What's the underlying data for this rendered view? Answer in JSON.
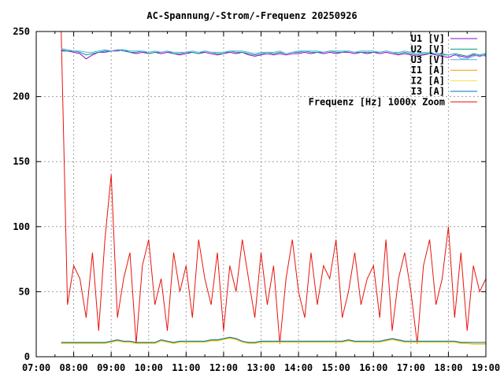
{
  "chart_data": {
    "type": "line",
    "title": "AC-Spannung/-Strom/-Frequenz 20250926",
    "xlabel": "",
    "ylabel": "",
    "xlim_hours": [
      7,
      19
    ],
    "ylim": [
      0,
      250
    ],
    "grid": true,
    "legend_position": "top-right",
    "x_tick_labels": [
      "07:00",
      "08:00",
      "09:00",
      "10:00",
      "11:00",
      "12:00",
      "13:00",
      "14:00",
      "15:00",
      "16:00",
      "17:00",
      "18:00",
      "19:00"
    ],
    "y_ticks": [
      0,
      50,
      100,
      150,
      200,
      250
    ],
    "y_tick_labels": [
      "0",
      "50",
      "100",
      "150",
      "200",
      "250"
    ],
    "x_start_hours": 7.6667,
    "x_step_minutes": 10,
    "series": [
      {
        "name": "U1 [V]",
        "color": "#9400d3",
        "values": [
          235,
          235,
          234,
          233,
          229,
          232,
          234,
          234,
          235,
          235,
          236,
          234,
          233,
          234,
          233,
          234,
          233,
          234,
          233,
          232,
          233,
          234,
          233,
          234,
          233,
          232,
          233,
          234,
          233,
          234,
          232,
          231,
          232,
          233,
          232,
          233,
          232,
          233,
          233,
          234,
          233,
          234,
          233,
          234,
          233,
          234,
          234,
          233,
          234,
          233,
          234,
          233,
          234,
          233,
          232,
          233,
          232,
          231,
          232,
          233,
          232,
          231,
          230,
          232,
          231,
          230,
          232,
          231,
          232
        ]
      },
      {
        "name": "U2 [V]",
        "color": "#009e73",
        "values": [
          236,
          235,
          235,
          234,
          232,
          233,
          234,
          235,
          235,
          236,
          235,
          234,
          234,
          235,
          233,
          234,
          234,
          235,
          233,
          233,
          234,
          234,
          233,
          235,
          234,
          233,
          233,
          235,
          234,
          234,
          233,
          232,
          233,
          234,
          233,
          234,
          233,
          234,
          234,
          235,
          234,
          234,
          234,
          235,
          234,
          234,
          235,
          234,
          234,
          234,
          234,
          234,
          235,
          234,
          233,
          234,
          233,
          232,
          233,
          233,
          233,
          232,
          232,
          233,
          232,
          231,
          233,
          232,
          233
        ]
      },
      {
        "name": "U3 [V]",
        "color": "#56b4e9",
        "values": [
          237,
          236,
          235,
          235,
          234,
          234,
          235,
          236,
          235,
          236,
          236,
          235,
          235,
          235,
          234,
          235,
          234,
          235,
          234,
          234,
          234,
          235,
          234,
          235,
          234,
          234,
          234,
          235,
          235,
          235,
          234,
          233,
          234,
          234,
          234,
          235,
          233,
          234,
          235,
          235,
          235,
          235,
          234,
          235,
          235,
          235,
          235,
          234,
          235,
          235,
          235,
          234,
          235,
          234,
          234,
          235,
          234,
          233,
          234,
          234,
          233,
          233,
          232,
          233,
          229,
          229,
          231,
          232,
          231
        ]
      },
      {
        "name": "I1 [A]",
        "color": "#e69f00",
        "values": [
          10.5,
          10.5,
          10.5,
          10.5,
          10.5,
          10.5,
          10.5,
          10.5,
          11.5,
          12.5,
          11.5,
          11.5,
          10.5,
          10.5,
          10.5,
          10.5,
          12.5,
          11.5,
          10.5,
          11.5,
          11.5,
          11.5,
          11.5,
          11.5,
          12.5,
          12.5,
          13.5,
          14.5,
          13.5,
          11.5,
          10.5,
          10.5,
          11.5,
          11.5,
          11.5,
          11.5,
          11.5,
          11.5,
          11.5,
          11.5,
          11.5,
          11.5,
          11.5,
          11.5,
          11.5,
          11.5,
          12.5,
          11.5,
          11.5,
          11.5,
          11.5,
          11.5,
          12.5,
          13.5,
          12.5,
          11.5,
          11.5,
          11.5,
          11.5,
          11.5,
          11.5,
          11.5,
          11.5,
          11.5,
          10.5,
          10.5,
          10,
          10,
          10
        ]
      },
      {
        "name": "I2 [A]",
        "color": "#f0e442",
        "values": [
          10,
          10,
          10,
          10,
          10,
          10,
          10,
          10,
          11,
          12,
          11,
          11,
          10,
          10,
          10,
          10,
          12,
          11,
          10,
          11,
          11,
          11,
          11,
          11,
          12,
          12,
          13,
          14,
          13,
          11,
          10,
          10,
          11,
          11,
          11,
          11,
          11,
          11,
          11,
          11,
          11,
          11,
          11,
          11,
          11,
          11,
          12,
          11,
          11,
          11,
          11,
          11,
          12,
          13,
          12,
          11,
          11,
          11,
          11,
          11,
          11,
          11,
          11,
          11,
          10,
          10,
          9.5,
          9.5,
          9.5
        ]
      },
      {
        "name": "I3 [A]",
        "color": "#0072b2",
        "values": [
          11,
          11,
          11,
          11,
          11,
          11,
          11,
          11,
          12,
          13,
          12,
          12,
          11,
          11,
          11,
          11,
          13,
          12,
          11,
          12,
          12,
          12,
          12,
          12,
          13,
          13,
          14,
          15,
          14,
          12,
          11,
          11,
          12,
          12,
          12,
          12,
          12,
          12,
          12,
          12,
          12,
          12,
          12,
          12,
          12,
          12,
          13,
          12,
          12,
          12,
          12,
          12,
          13,
          14,
          13,
          12,
          12,
          12,
          12,
          12,
          12,
          12,
          12,
          12,
          11,
          11,
          11,
          11,
          11
        ]
      },
      {
        "name": "Frequenz [Hz] 1000x Zoom",
        "color": "#e8130b",
        "values": [
          250,
          40,
          70,
          60,
          30,
          80,
          20,
          90,
          140,
          30,
          60,
          80,
          10,
          70,
          90,
          40,
          60,
          20,
          80,
          50,
          70,
          30,
          90,
          60,
          40,
          80,
          20,
          70,
          50,
          90,
          60,
          30,
          80,
          40,
          70,
          10,
          60,
          90,
          50,
          30,
          80,
          40,
          70,
          60,
          90,
          30,
          50,
          80,
          40,
          60,
          70,
          30,
          90,
          20,
          60,
          80,
          50,
          10,
          70,
          90,
          40,
          60,
          100,
          30,
          80,
          20,
          70,
          50,
          60
        ]
      }
    ]
  }
}
